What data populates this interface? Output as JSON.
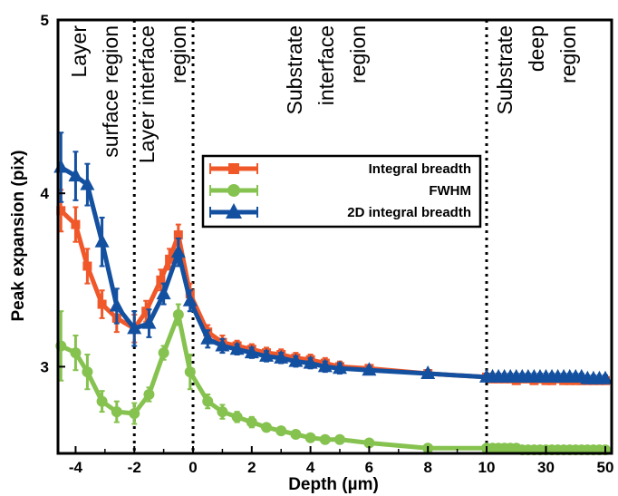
{
  "chart_data": {
    "type": "line",
    "title": "",
    "xlabel": "Depth (µm)",
    "ylabel": "Peak expansion (pix)",
    "ylim": [
      2.5,
      5
    ],
    "yticks": [
      "3",
      "4",
      "5"
    ],
    "xticks": [
      "-4",
      "-2",
      "0",
      "2",
      "4",
      "6",
      "8",
      "10",
      "30",
      "50"
    ],
    "x_axis_note": "linear scale from -4.6 to 10 µm, compressed segment from 10 to 50 µm",
    "grid": false,
    "legend_position": "center",
    "regions": [
      {
        "label_lines": [
          "Layer",
          "surface region"
        ]
      },
      {
        "label_lines": [
          "Layer interface",
          "region"
        ]
      },
      {
        "label_lines": [
          "Substrate",
          "interface",
          "region"
        ]
      },
      {
        "label_lines": [
          "Substrate",
          "deep",
          "region"
        ]
      }
    ],
    "boundaries": [
      -2,
      0,
      10
    ],
    "series": [
      {
        "name": "Integral breadth",
        "color": "#f0582a",
        "marker": "square",
        "x": [
          -4.5,
          -4.0,
          -3.6,
          -3.1,
          -2.6,
          -2.0,
          -1.6,
          -1.1,
          -0.8,
          -0.5,
          -0.1,
          0.5,
          1,
          1.5,
          2,
          2.5,
          3,
          3.5,
          4,
          4.5,
          5,
          6,
          8,
          10,
          12,
          14,
          16,
          18,
          20,
          22,
          24,
          26,
          28,
          30,
          32,
          34,
          36,
          38,
          40,
          42,
          44,
          46,
          48,
          50
        ],
        "y": [
          3.9,
          3.82,
          3.58,
          3.36,
          3.28,
          3.22,
          3.32,
          3.5,
          3.62,
          3.76,
          3.42,
          3.2,
          3.14,
          3.12,
          3.1,
          3.08,
          3.07,
          3.05,
          3.04,
          3.02,
          3.0,
          2.99,
          2.96,
          2.94,
          2.93,
          2.93,
          2.93,
          2.93,
          2.92,
          2.93,
          2.93,
          2.92,
          2.93,
          2.92,
          2.92,
          2.93,
          2.92,
          2.92,
          2.92,
          2.92,
          2.92,
          2.92,
          2.92,
          2.92
        ],
        "error": [
          0.12,
          0.1,
          0.1,
          0.08,
          0.08,
          0.08,
          0.06,
          0.06,
          0.06,
          0.06,
          0.06,
          0.04,
          0.04,
          0.03,
          0.03,
          0.03,
          0.03,
          0.03,
          0.03,
          0.03,
          0.03,
          0.02,
          0.02,
          0.02,
          0.02,
          0.02,
          0.02,
          0.02,
          0.02,
          0.02,
          0.02,
          0.02,
          0.02,
          0.02,
          0.02,
          0.02,
          0.02,
          0.02,
          0.02,
          0.02,
          0.02,
          0.02,
          0.02,
          0.02
        ]
      },
      {
        "name": "FWHM",
        "color": "#86c24f",
        "marker": "circle",
        "x": [
          -4.5,
          -4.0,
          -3.6,
          -3.1,
          -2.6,
          -2.0,
          -1.5,
          -1.0,
          -0.5,
          -0.1,
          0.5,
          1,
          1.5,
          2,
          2.5,
          3,
          3.5,
          4,
          4.5,
          5,
          6,
          8,
          10,
          12,
          14,
          16,
          18,
          20,
          22,
          24,
          26,
          28,
          30,
          32,
          34,
          36,
          38,
          40,
          42,
          44,
          46,
          48,
          50
        ],
        "y": [
          3.12,
          3.08,
          2.97,
          2.8,
          2.74,
          2.73,
          2.84,
          3.08,
          3.3,
          2.97,
          2.8,
          2.74,
          2.71,
          2.68,
          2.65,
          2.63,
          2.61,
          2.59,
          2.58,
          2.58,
          2.56,
          2.53,
          2.53,
          2.53,
          2.53,
          2.53,
          2.53,
          2.53,
          2.52,
          2.52,
          2.52,
          2.52,
          2.52,
          2.52,
          2.52,
          2.52,
          2.52,
          2.52,
          2.52,
          2.52,
          2.52,
          2.52,
          2.52
        ],
        "error": [
          0.2,
          0.1,
          0.1,
          0.06,
          0.06,
          0.06,
          0.04,
          0.04,
          0.06,
          0.1,
          0.04,
          0.04,
          0.03,
          0.03,
          0.02,
          0.02,
          0.02,
          0.02,
          0.02,
          0.02,
          0.01,
          0.01,
          0.01,
          0.01,
          0.01,
          0.01,
          0.01,
          0.01,
          0.01,
          0.01,
          0.01,
          0.01,
          0.01,
          0.01,
          0.01,
          0.01,
          0.01,
          0.01,
          0.01,
          0.01,
          0.01,
          0.01,
          0.01
        ]
      },
      {
        "name": "2D integral breadth",
        "color": "#1450a0",
        "marker": "triangle",
        "x": [
          -4.5,
          -4.0,
          -3.6,
          -3.1,
          -2.6,
          -2.0,
          -1.5,
          -1.0,
          -0.5,
          -0.1,
          0.5,
          1,
          1.5,
          2,
          2.5,
          3,
          3.5,
          4,
          4.5,
          5,
          6,
          8,
          10,
          12,
          14,
          16,
          18,
          20,
          22,
          24,
          26,
          28,
          30,
          32,
          34,
          36,
          38,
          40,
          42,
          44,
          46,
          48,
          50
        ],
        "y": [
          4.15,
          4.1,
          4.05,
          3.72,
          3.35,
          3.22,
          3.25,
          3.42,
          3.66,
          3.38,
          3.16,
          3.12,
          3.1,
          3.08,
          3.06,
          3.05,
          3.03,
          3.02,
          3.0,
          2.99,
          2.98,
          2.96,
          2.94,
          2.94,
          2.94,
          2.94,
          2.94,
          2.94,
          2.94,
          2.94,
          2.94,
          2.94,
          2.94,
          2.94,
          2.94,
          2.94,
          2.94,
          2.94,
          2.94,
          2.93,
          2.93,
          2.93,
          2.93
        ],
        "error": [
          0.2,
          0.14,
          0.12,
          0.14,
          0.1,
          0.1,
          0.08,
          0.06,
          0.08,
          0.06,
          0.05,
          0.04,
          0.03,
          0.03,
          0.03,
          0.03,
          0.03,
          0.03,
          0.03,
          0.03,
          0.02,
          0.02,
          0.02,
          0.02,
          0.02,
          0.02,
          0.02,
          0.02,
          0.02,
          0.02,
          0.02,
          0.02,
          0.02,
          0.02,
          0.02,
          0.02,
          0.02,
          0.02,
          0.02,
          0.02,
          0.02,
          0.02,
          0.02
        ]
      }
    ]
  }
}
